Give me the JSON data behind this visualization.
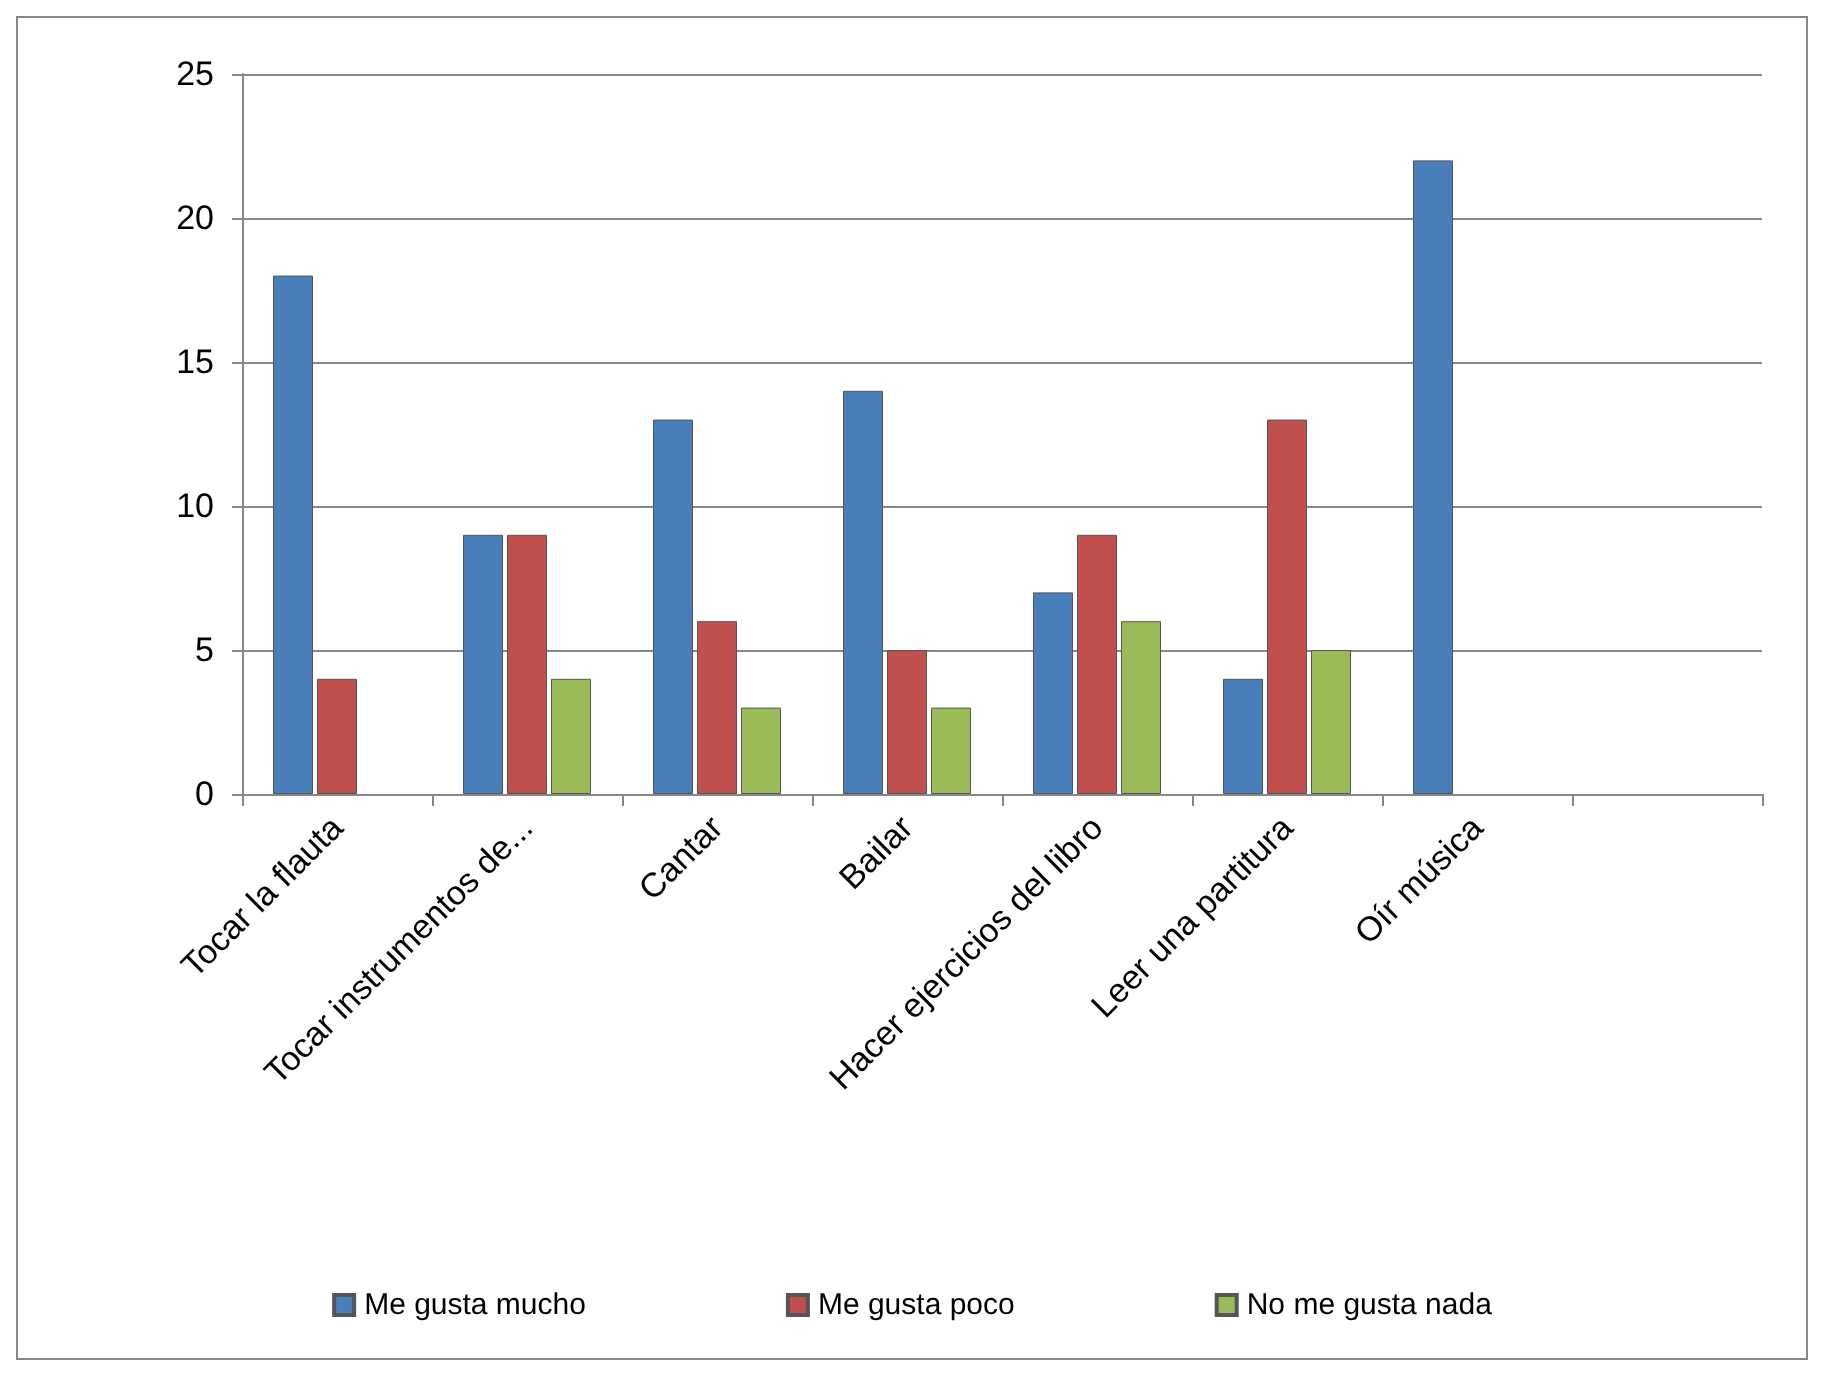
{
  "chart_data": {
    "type": "bar",
    "categories": [
      "Tocar la flauta",
      "Tocar instrumentos de...",
      "Cantar",
      "Bailar",
      "Hacer ejercicios del libro",
      "Leer una partitura",
      "Oír música",
      null
    ],
    "series": [
      {
        "name": "Me gusta mucho",
        "color": "#4a7ebb",
        "values": [
          18,
          9,
          13,
          14,
          7,
          4,
          22,
          null
        ]
      },
      {
        "name": "Me gusta poco",
        "color": "#c0504d",
        "values": [
          4,
          9,
          6,
          5,
          9,
          13,
          null,
          null
        ]
      },
      {
        "name": "No me gusta nada",
        "color": "#9bbb59",
        "values": [
          null,
          4,
          3,
          3,
          6,
          5,
          null,
          null
        ]
      }
    ],
    "ylim": [
      0,
      25
    ],
    "yticks": [
      0,
      5,
      10,
      15,
      20,
      25
    ],
    "grid": "y",
    "legend": "bottom"
  }
}
